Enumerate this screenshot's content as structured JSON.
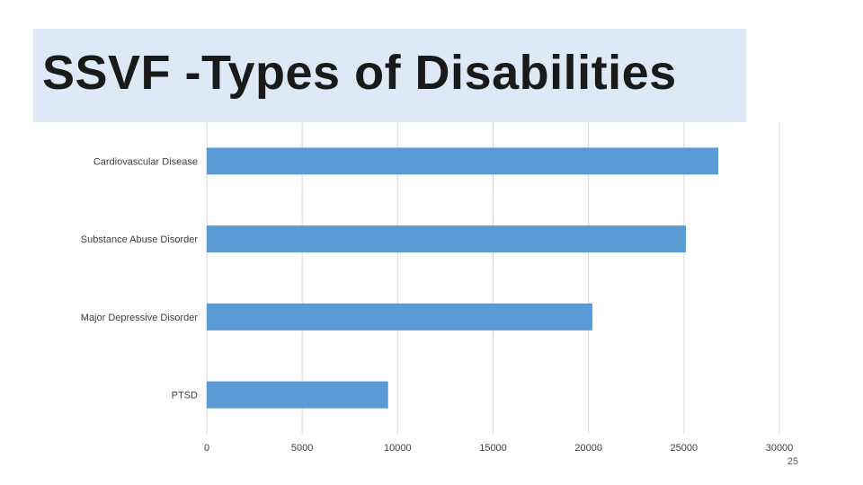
{
  "slide": {
    "title": "SSVF -Types of Disabilities",
    "page_number": "25"
  },
  "colors": {
    "bar": "#5b9bd5",
    "grid": "#d9d9d9",
    "label": "#404040"
  },
  "chart_data": {
    "type": "bar",
    "orientation": "horizontal",
    "title": "",
    "xlabel": "",
    "ylabel": "",
    "categories": [
      "Cardiovascular Disease",
      "Substance Abuse Disorder",
      "Major Depressive Disorder",
      "PTSD"
    ],
    "values": [
      26800,
      25100,
      20200,
      9500
    ],
    "xlim": [
      0,
      30000
    ],
    "xticks": [
      0,
      5000,
      10000,
      15000,
      20000,
      25000,
      30000
    ],
    "grid": true,
    "legend": "none"
  }
}
